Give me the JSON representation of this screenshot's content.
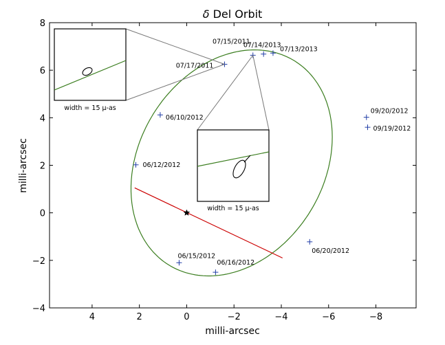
{
  "chart_data": {
    "type": "scatter",
    "title_symbol": "δ",
    "title_rest": " Del Orbit",
    "xlabel": "milli-arcsec",
    "ylabel": "milli-arcsec",
    "xlim": [
      5.8,
      -9.7
    ],
    "ylim": [
      -4,
      8
    ],
    "x_ticks": [
      4,
      2,
      0,
      -2,
      -4,
      -6,
      -8
    ],
    "x_tick_labels": [
      "4",
      "2",
      "0",
      "−2",
      "−4",
      "−6",
      "−8"
    ],
    "y_ticks": [
      -4,
      -2,
      0,
      2,
      4,
      6,
      8
    ],
    "y_tick_labels": [
      "−4",
      "−2",
      "0",
      "2",
      "4",
      "6",
      "8"
    ],
    "grid": false,
    "orbit": {
      "color": "#3a7d1e",
      "center": [
        -1.9,
        2.1
      ],
      "semi_major": 5.05,
      "semi_minor": 3.9,
      "rotation_deg": -58
    },
    "node_line": {
      "color": "#cc0000",
      "from": [
        2.2,
        1.05
      ],
      "to": [
        -4.05,
        -1.9
      ]
    },
    "star": {
      "x": 0.0,
      "y": 0.0,
      "marker": "star"
    },
    "observations": [
      {
        "date": "07/13/2013",
        "x": -3.65,
        "y": 6.72
      },
      {
        "date": "07/14/2013",
        "x": -3.25,
        "y": 6.68
      },
      {
        "date": "07/15/2011",
        "x": -2.8,
        "y": 6.63
      },
      {
        "date": "07/17/2011",
        "x": -1.6,
        "y": 6.25
      },
      {
        "date": "06/10/2012",
        "x": 1.12,
        "y": 4.12
      },
      {
        "date": "06/12/2012",
        "x": 2.15,
        "y": 2.02
      },
      {
        "date": "06/15/2012",
        "x": 0.32,
        "y": -2.1
      },
      {
        "date": "06/16/2012",
        "x": -1.22,
        "y": -2.5
      },
      {
        "date": "06/20/2012",
        "x": -5.2,
        "y": -1.22
      },
      {
        "date": "09/19/2012",
        "x": -7.65,
        "y": 3.6
      },
      {
        "date": "09/20/2012",
        "x": -7.6,
        "y": 4.02
      }
    ],
    "point_color": "#1f3ca6",
    "insets": [
      {
        "label": "width = 15 μ-as",
        "anchor_point": "07/17/2011"
      },
      {
        "label": "width = 15 μ-as",
        "anchor_point": "07/15/2011"
      }
    ]
  }
}
